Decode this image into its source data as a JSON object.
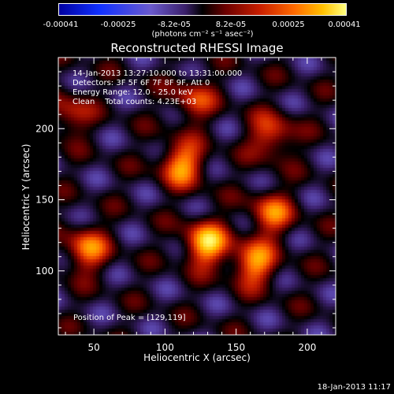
{
  "colorbar": {
    "ticks": [
      "-0.00041",
      "-0.00025",
      "-8.2e-05",
      "8.2e-05",
      "0.00025",
      "0.00041"
    ],
    "units": "(photons cm⁻² s⁻¹ asec⁻²)",
    "colors": [
      "#0000a0",
      "#1030ff",
      "#6a5acd",
      "#3a1f6a",
      "#000000",
      "#6b0000",
      "#c81e00",
      "#ff6a00",
      "#ffc000",
      "#ffff80"
    ]
  },
  "title": "Reconstructed RHESSI Image",
  "info": {
    "time": "14-Jan-2013 13:27:10.000 to 13:31:00.000",
    "detectors": "Detectors: 3F 5F 6F 7F 8F 9F, Att 0",
    "energy": "Energy Range: 12.0 - 25.0 keV",
    "clean": "Clean    Total counts: 4.23E+03"
  },
  "peak_text": "Position of Peak = [129,119]",
  "xlabel": "Heliocentric X (arcsec)",
  "ylabel": "Heliocentric Y (arcsec)",
  "timestamp": "18-Jan-2013 11:17",
  "chart_data": {
    "type": "heatmap",
    "title": "Reconstructed RHESSI Image",
    "xlabel": "Heliocentric X (arcsec)",
    "ylabel": "Heliocentric Y (arcsec)",
    "xlim": [
      25,
      220
    ],
    "ylim": [
      55,
      250
    ],
    "xticks": [
      50,
      100,
      150,
      200
    ],
    "yticks": [
      100,
      150,
      200
    ],
    "value_range": [
      -0.00041,
      0.00041
    ],
    "peak": [
      129,
      119
    ],
    "bright_sources": [
      {
        "x": 129,
        "y": 119,
        "value": 0.00041
      },
      {
        "x": 112,
        "y": 175,
        "value": 0.00035
      },
      {
        "x": 163,
        "y": 105,
        "value": 0.00034
      },
      {
        "x": 45,
        "y": 115,
        "value": 0.0003
      },
      {
        "x": 175,
        "y": 140,
        "value": 0.00028
      },
      {
        "x": 175,
        "y": 195,
        "value": 0.00026
      },
      {
        "x": 120,
        "y": 220,
        "value": 0.00022
      },
      {
        "x": 32,
        "y": 210,
        "value": 0.0002
      }
    ]
  }
}
